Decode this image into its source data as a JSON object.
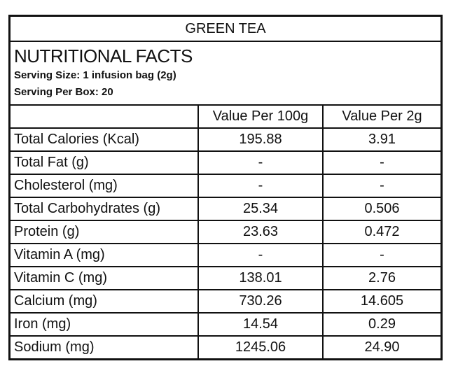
{
  "title": "GREEN  TEA",
  "heading": "NUTRITIONAL FACTS",
  "serving_size": "Serving Size: 1 infusion bag (2g)",
  "serving_per_box": "Serving Per Box: 20",
  "table": {
    "columns": [
      "Value Per 100g",
      "Value Per 2g"
    ],
    "rows": [
      [
        "Total Calories (Kcal)",
        "195.88",
        "3.91"
      ],
      [
        "Total Fat (g)",
        "-",
        "-"
      ],
      [
        "Cholesterol (mg)",
        "-",
        "-"
      ],
      [
        "Total Carbohydrates (g)",
        "25.34",
        "0.506"
      ],
      [
        "Protein (g)",
        "23.63",
        "0.472"
      ],
      [
        "Vitamin A (mg)",
        "-",
        "-"
      ],
      [
        "Vitamin C (mg)",
        "138.01",
        "2.76"
      ],
      [
        "Calcium (mg)",
        "730.26",
        "14.605"
      ],
      [
        "Iron (mg)",
        "14.54",
        "0.29"
      ],
      [
        "Sodium (mg)",
        "1245.06",
        "24.90"
      ]
    ]
  }
}
